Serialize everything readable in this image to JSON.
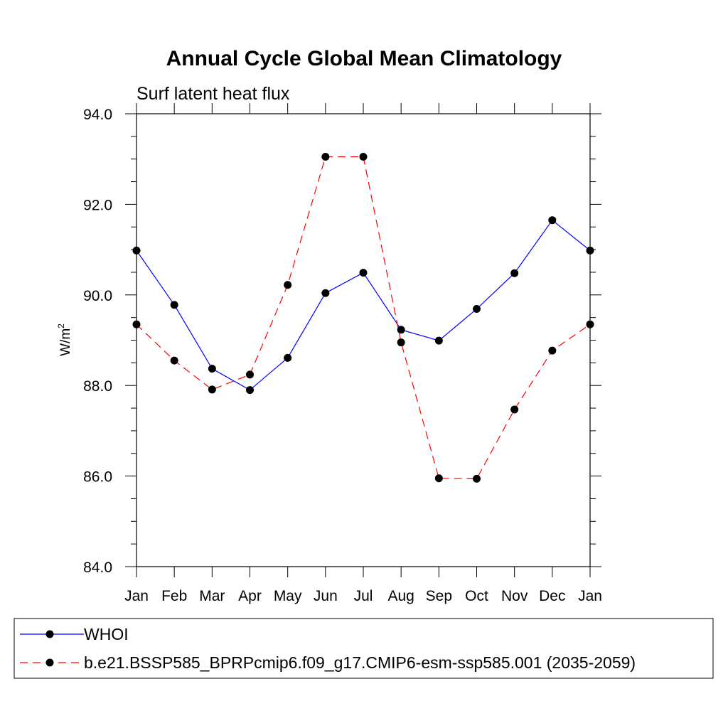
{
  "chart_data": {
    "type": "line",
    "title": "Annual Cycle Global Mean Climatology",
    "subtitle": "Surf latent heat flux",
    "ylabel": "W/m",
    "ylabel_exponent": "2",
    "xlabel": "",
    "categories": [
      "Jan",
      "Feb",
      "Mar",
      "Apr",
      "May",
      "Jun",
      "Jul",
      "Aug",
      "Sep",
      "Oct",
      "Nov",
      "Dec",
      "Jan"
    ],
    "ylim": [
      84.0,
      94.0
    ],
    "y_major_ticks": [
      84.0,
      86.0,
      88.0,
      90.0,
      92.0,
      94.0
    ],
    "y_tick_labels": [
      "84.0",
      "86.0",
      "88.0",
      "90.0",
      "92.0",
      "94.0"
    ],
    "y_minor_step": 0.5,
    "grid": false,
    "legend_position": "bottom",
    "series": [
      {
        "name": "WHOI",
        "color": "#0000ff",
        "dash": "solid",
        "values": [
          90.98,
          89.78,
          88.37,
          87.9,
          88.61,
          90.04,
          90.49,
          89.23,
          88.99,
          89.69,
          90.48,
          91.65,
          90.98
        ]
      },
      {
        "name": "b.e21.BSSP585_BPRPcmip6.f09_g17.CMIP6-esm-ssp585.001 (2035-2059)",
        "color": "#ff0000",
        "dash": "dashed",
        "values": [
          89.35,
          88.55,
          87.91,
          88.24,
          90.22,
          93.05,
          93.05,
          88.95,
          85.95,
          85.94,
          87.47,
          88.77,
          89.35
        ]
      }
    ]
  }
}
